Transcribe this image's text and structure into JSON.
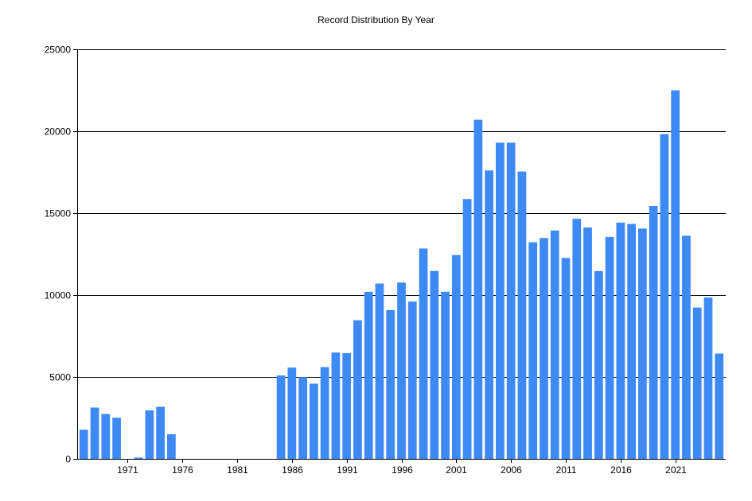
{
  "chart_data": {
    "type": "bar",
    "title": "Record Distribution By Year",
    "xlabel": "",
    "ylabel": "",
    "ylim": [
      0,
      25000
    ],
    "y_ticks": [
      0,
      5000,
      10000,
      15000,
      20000,
      25000
    ],
    "x_tick_labels": [
      "1971",
      "1976",
      "1981",
      "1986",
      "1991",
      "1996",
      "2001",
      "2006",
      "2011",
      "2016",
      "2021"
    ],
    "grid": "horizontal",
    "bar_color": "#3d8af5",
    "categories": [
      1967,
      1968,
      1969,
      1970,
      1971,
      1972,
      1973,
      1974,
      1975,
      1976,
      1977,
      1978,
      1979,
      1980,
      1981,
      1982,
      1983,
      1984,
      1985,
      1986,
      1987,
      1988,
      1989,
      1990,
      1991,
      1992,
      1993,
      1994,
      1995,
      1996,
      1997,
      1998,
      1999,
      2000,
      2001,
      2002,
      2003,
      2004,
      2005,
      2006,
      2007,
      2008,
      2009,
      2010,
      2011,
      2012,
      2013,
      2014,
      2015,
      2016,
      2017,
      2018,
      2019,
      2020,
      2021,
      2022,
      2023,
      2024,
      2025
    ],
    "values": [
      1780,
      3130,
      2740,
      2510,
      0,
      80,
      2960,
      3180,
      1500,
      0,
      0,
      0,
      0,
      0,
      0,
      0,
      0,
      0,
      5090,
      5570,
      4990,
      4590,
      5600,
      6490,
      6450,
      8460,
      10200,
      10700,
      9080,
      10760,
      9600,
      12840,
      11470,
      10200,
      12440,
      15860,
      20700,
      17610,
      19300,
      19300,
      17540,
      13220,
      13480,
      13940,
      12260,
      14650,
      14120,
      11460,
      13550,
      14420,
      14340,
      14060,
      15440,
      19820,
      22500,
      13620,
      9240,
      9850,
      6430
    ]
  }
}
